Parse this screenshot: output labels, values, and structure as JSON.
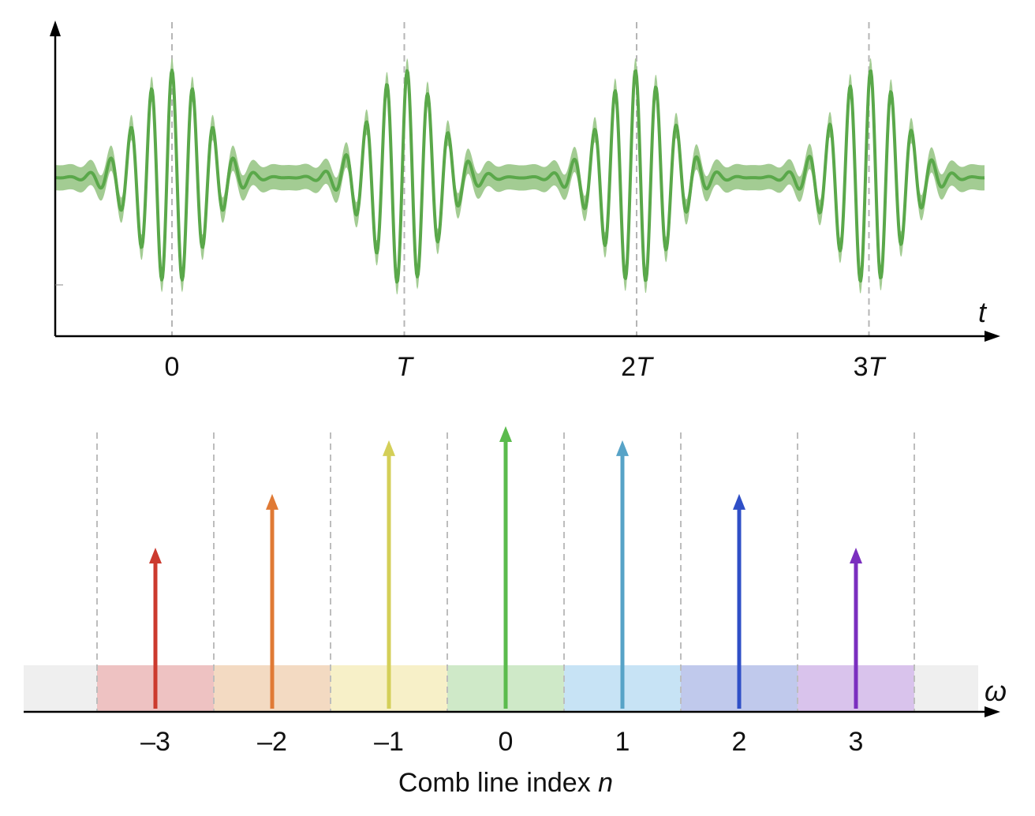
{
  "time_panel": {
    "axis_label": "t",
    "tick_labels": [
      {
        "pre": "0",
        "italic": ""
      },
      {
        "pre": "",
        "italic": "T"
      },
      {
        "pre": "2",
        "italic": "T"
      },
      {
        "pre": "3",
        "italic": "T"
      }
    ],
    "pulse_count": 4,
    "color": "#5aa84a",
    "band_color": "#a3cc93"
  },
  "frequency_panel": {
    "axis_label": "ω",
    "xlabel_text": "Comb line index ",
    "xlabel_var": "n",
    "background_band_color": "#efefef",
    "comb_lines": [
      {
        "index": -3,
        "label": "–3",
        "amplitude": 0.57,
        "color": "#cc3a2e",
        "band_color": "#eec2c2"
      },
      {
        "index": -2,
        "label": "–2",
        "amplitude": 0.76,
        "color": "#e07a35",
        "band_color": "#f3dac2"
      },
      {
        "index": -1,
        "label": "–1",
        "amplitude": 0.95,
        "color": "#d4cf58",
        "band_color": "#f7f0c8"
      },
      {
        "index": 0,
        "label": "0",
        "amplitude": 1.0,
        "color": "#5bbb4d",
        "band_color": "#cfe9c8"
      },
      {
        "index": 1,
        "label": "1",
        "amplitude": 0.95,
        "color": "#57a3c7",
        "band_color": "#c7e3f5"
      },
      {
        "index": 2,
        "label": "2",
        "amplitude": 0.76,
        "color": "#2f4fc7",
        "band_color": "#c0c9ec"
      },
      {
        "index": 3,
        "label": "3",
        "amplitude": 0.57,
        "color": "#7b2fbf",
        "band_color": "#d9c3ec"
      }
    ]
  }
}
